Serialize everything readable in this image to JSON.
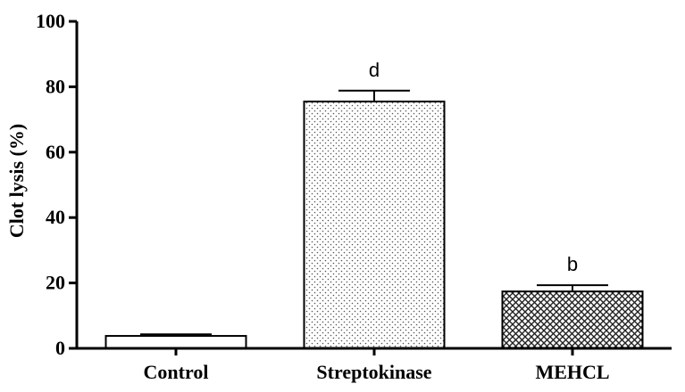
{
  "chart_data": {
    "type": "bar",
    "title": "",
    "xlabel": "",
    "ylabel": "Clot lysis (%)",
    "ylim": [
      0,
      100
    ],
    "yticks": [
      0,
      20,
      40,
      60,
      80,
      100
    ],
    "grid": false,
    "legend": "none",
    "categories": [
      "Control",
      "Streptokinase",
      "MEHCL"
    ],
    "values": [
      3.8,
      75.5,
      17.4
    ],
    "errors": [
      0.5,
      3.3,
      1.9
    ],
    "annotations": [
      "",
      "d",
      "b"
    ],
    "fills": [
      "plain",
      "dotted",
      "crosshatch"
    ],
    "bar_color": "#ffffff",
    "edge_color": "#000000"
  }
}
